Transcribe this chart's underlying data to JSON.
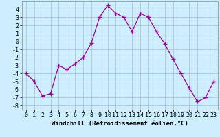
{
  "x": [
    0,
    1,
    2,
    3,
    4,
    5,
    6,
    7,
    8,
    9,
    10,
    11,
    12,
    13,
    14,
    15,
    16,
    17,
    18,
    19,
    20,
    21,
    22,
    23
  ],
  "y": [
    -4,
    -5,
    -6.8,
    -6.5,
    -3,
    -3.5,
    -2.8,
    -2,
    -0.2,
    3,
    4.5,
    3.5,
    3,
    1.2,
    3.5,
    3,
    1.2,
    -0.3,
    -2.2,
    -4,
    -5.8,
    -7.5,
    -7,
    -5
  ],
  "line_color": "#990099",
  "marker": "+",
  "marker_size": 4,
  "bg_color": "#cceeff",
  "grid_color": "#aabbcc",
  "xlabel": "Windchill (Refroidissement éolien,°C)",
  "xlim": [
    -0.5,
    23.5
  ],
  "ylim": [
    -8.5,
    5.0
  ],
  "yticks": [
    -8,
    -7,
    -6,
    -5,
    -4,
    -3,
    -2,
    -1,
    0,
    1,
    2,
    3,
    4
  ],
  "xticks": [
    0,
    1,
    2,
    3,
    4,
    5,
    6,
    7,
    8,
    9,
    10,
    11,
    12,
    13,
    14,
    15,
    16,
    17,
    18,
    19,
    20,
    21,
    22,
    23
  ],
  "font_size": 6,
  "xlabel_fontsize": 6.5
}
